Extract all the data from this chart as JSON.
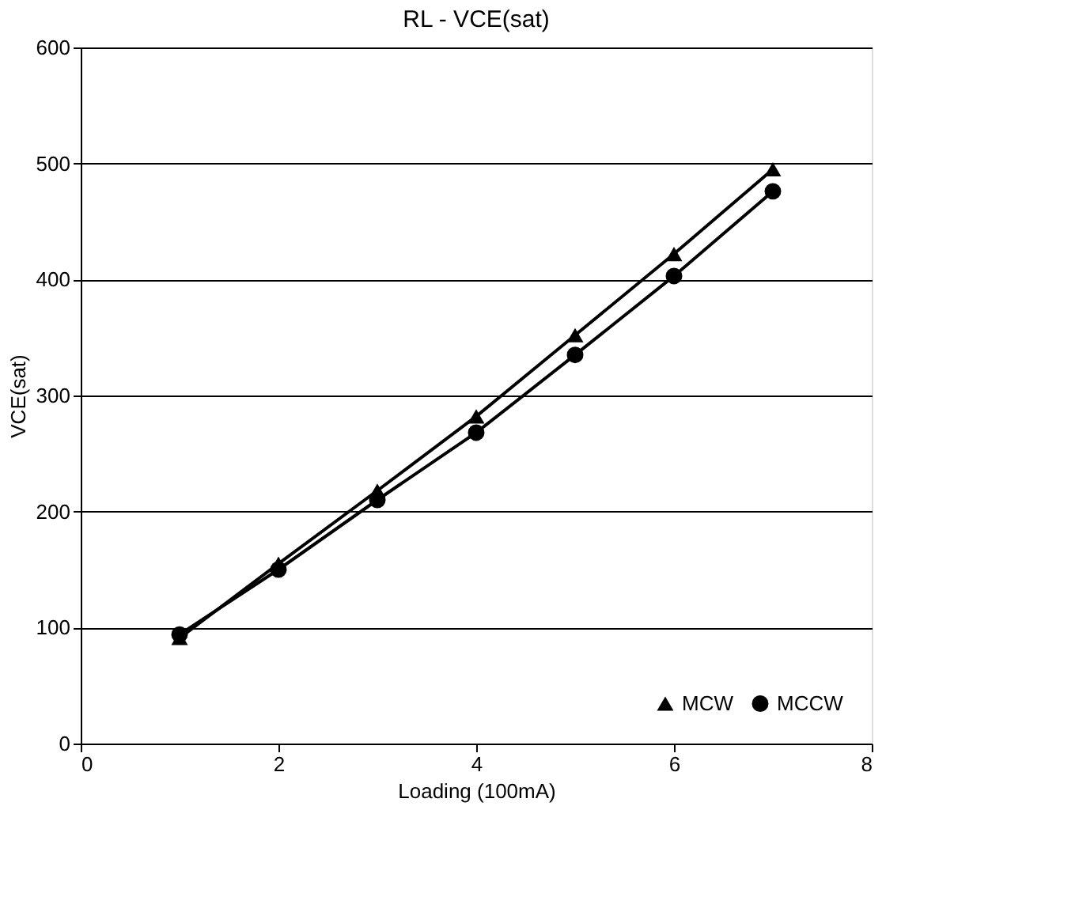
{
  "chart_data": {
    "type": "line",
    "title": "RL - VCE(sat)",
    "xlabel": "Loading (100mA)",
    "ylabel": "VCE(sat)",
    "x": [
      1,
      2,
      3,
      4,
      5,
      6,
      7
    ],
    "series": [
      {
        "name": "MCW",
        "color": "#000000",
        "marker": "triangle",
        "values": [
          91,
          155,
          218,
          282,
          352,
          422,
          495
        ]
      },
      {
        "name": "MCCW",
        "color": "#000000",
        "marker": "circle",
        "values": [
          94,
          150,
          210,
          268,
          335,
          403,
          476
        ]
      }
    ],
    "xlim": [
      0,
      8
    ],
    "xticks": [
      0,
      2,
      4,
      6,
      8
    ],
    "ylim": [
      0,
      600
    ],
    "yticks": [
      0,
      100,
      200,
      300,
      400,
      500,
      600
    ],
    "grid": "y",
    "legend": "bottom right",
    "line_style": "solid"
  }
}
